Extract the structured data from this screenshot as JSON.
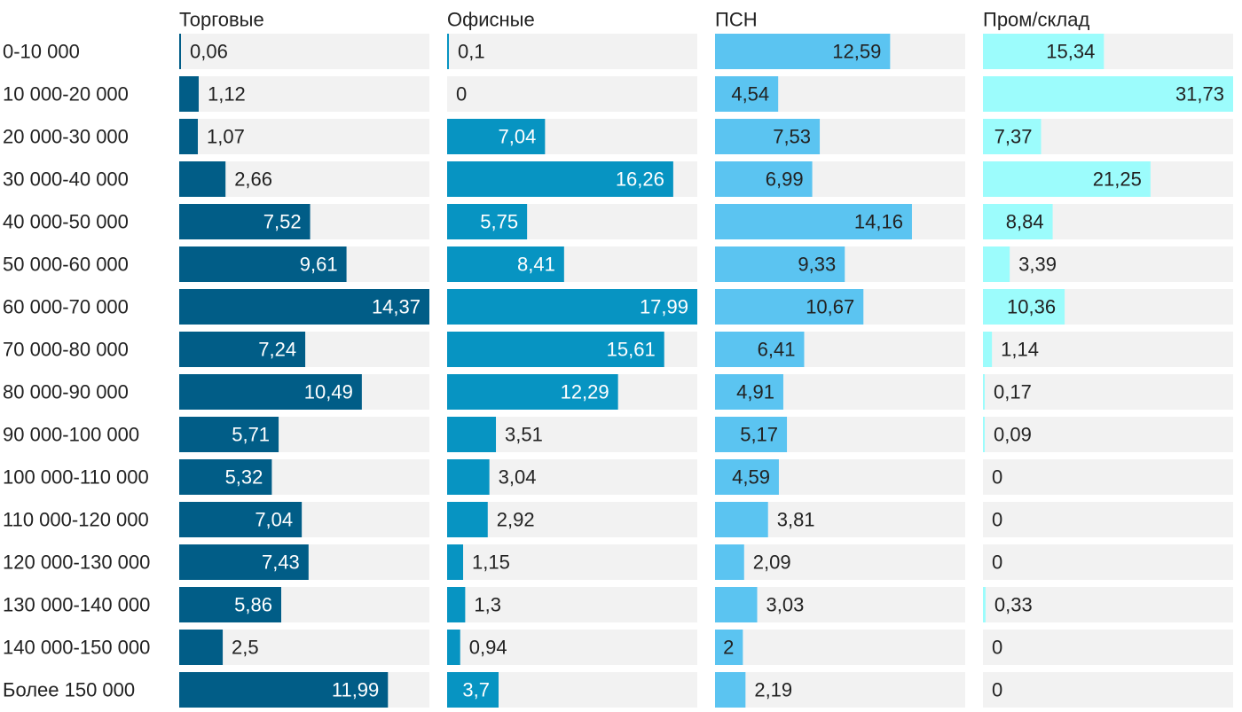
{
  "chart_data": {
    "type": "bar",
    "orientation": "horizontal",
    "layout": "small-multiples",
    "categories": [
      "0-10 000",
      "10 000-20 000",
      "20 000-30 000",
      "30 000-40 000",
      "40 000-50 000",
      "50 000-60 000",
      "60 000-70 000",
      "70 000-80 000",
      "80 000-90 000",
      "90 000-100 000",
      "100 000-110 000",
      "110 000-120 000",
      "120 000-130 000",
      "130 000-140 000",
      "140 000-150 000",
      "Более 150 000"
    ],
    "series": [
      {
        "name": "Торговые",
        "color": "#015d87",
        "max": 14.37,
        "values": [
          0.06,
          1.12,
          1.07,
          2.66,
          7.52,
          9.61,
          14.37,
          7.24,
          10.49,
          5.71,
          5.32,
          7.04,
          7.43,
          5.86,
          2.5,
          11.99
        ],
        "labels": [
          "0,06",
          "1,12",
          "1,07",
          "2,66",
          "7,52",
          "9,61",
          "14,37",
          "7,24",
          "10,49",
          "5,71",
          "5,32",
          "7,04",
          "7,43",
          "5,86",
          "2,5",
          "11,99"
        ]
      },
      {
        "name": "Офисные",
        "color": "#0794c2",
        "max": 17.99,
        "values": [
          0.1,
          0,
          7.04,
          16.26,
          5.75,
          8.41,
          17.99,
          15.61,
          12.29,
          3.51,
          3.04,
          2.92,
          1.15,
          1.3,
          0.94,
          3.7
        ],
        "labels": [
          "0,1",
          "0",
          "7,04",
          "16,26",
          "5,75",
          "8,41",
          "17,99",
          "15,61",
          "12,29",
          "3,51",
          "3,04",
          "2,92",
          "1,15",
          "1,3",
          "0,94",
          "3,7"
        ]
      },
      {
        "name": "ПСН",
        "color": "#5bc4f1",
        "max": 17.99,
        "values": [
          12.59,
          4.54,
          7.53,
          6.99,
          14.16,
          9.33,
          10.67,
          6.41,
          4.91,
          5.17,
          4.59,
          3.81,
          2.09,
          3.03,
          2,
          2.19
        ],
        "labels": [
          "12,59",
          "4,54",
          "7,53",
          "6,99",
          "14,16",
          "9,33",
          "10,67",
          "6,41",
          "4,91",
          "5,17",
          "4,59",
          "3,81",
          "2,09",
          "3,03",
          "2",
          "2,19"
        ]
      },
      {
        "name": "Пром/склад",
        "color": "#9cfcfc",
        "max": 31.73,
        "values": [
          15.34,
          31.73,
          7.37,
          21.25,
          8.84,
          3.39,
          10.36,
          1.14,
          0.17,
          0.09,
          0,
          0,
          0,
          0.33,
          0,
          0
        ],
        "labels": [
          "15,34",
          "31,73",
          "7,37",
          "21,25",
          "8,84",
          "3,39",
          "10,36",
          "1,14",
          "0,17",
          "0,09",
          "0",
          "0",
          "0",
          "0,33",
          "0",
          "0"
        ]
      }
    ],
    "grid": false,
    "legend": "none",
    "title": "",
    "xlabel": "",
    "ylabel": ""
  }
}
